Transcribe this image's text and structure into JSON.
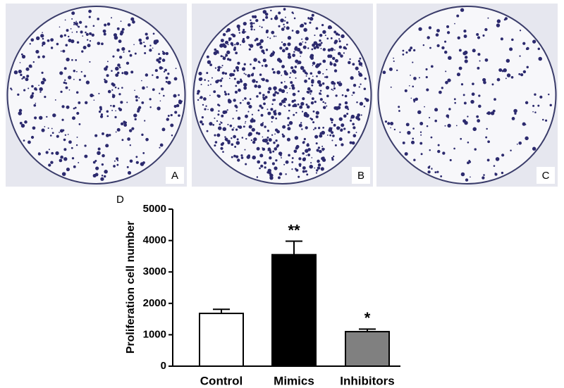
{
  "figure": {
    "panels": [
      "A",
      "B",
      "C"
    ],
    "chart_panel": "D"
  },
  "chart_data": {
    "type": "bar",
    "ylabel": "Proliferation cell number",
    "categories": [
      "Control",
      "Mimics",
      "Inhibitors"
    ],
    "values": [
      1680,
      3550,
      1100
    ],
    "errors": [
      130,
      430,
      80
    ],
    "colors": [
      "#ffffff",
      "#000000",
      "#808080"
    ],
    "annotations": [
      null,
      "**",
      "*"
    ],
    "ylim": [
      0,
      5000
    ],
    "yticks": [
      0,
      1000,
      2000,
      3000,
      4000,
      5000
    ]
  }
}
